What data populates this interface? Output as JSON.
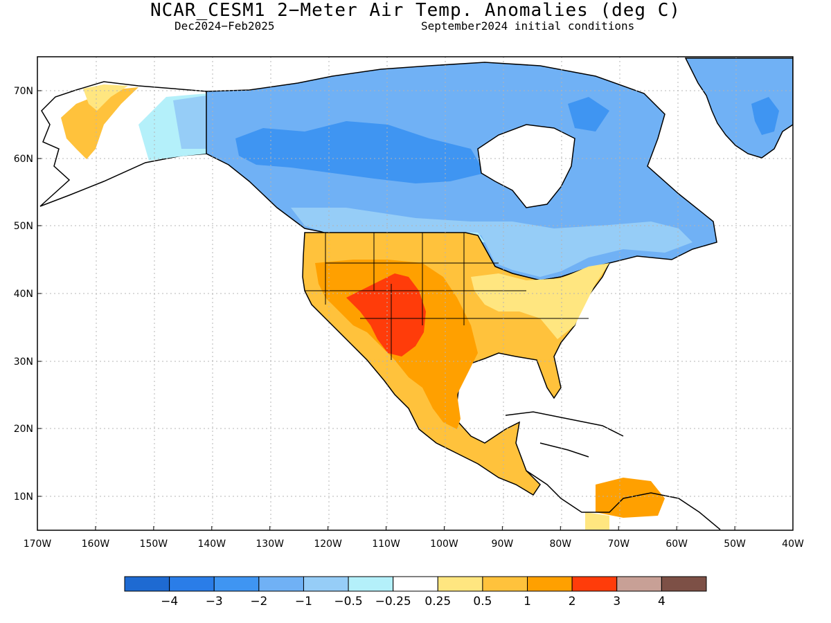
{
  "title": "NCAR_CESM1 2−Meter Air Temp. Anomalies (deg C)",
  "subtitle_left": "Dec2024−Feb2025",
  "subtitle_right": "September2024 initial conditions",
  "lat_labels": [
    "70N",
    "60N",
    "50N",
    "40N",
    "30N",
    "20N",
    "10N"
  ],
  "lon_labels": [
    "170W",
    "160W",
    "150W",
    "140W",
    "130W",
    "120W",
    "110W",
    "100W",
    "90W",
    "80W",
    "70W",
    "60W",
    "50W",
    "40W"
  ],
  "colorbar": {
    "boundary_labels": [
      "−4",
      "−3",
      "−2",
      "−1",
      "−0.5",
      "−0.25",
      "0.25",
      "0.5",
      "1",
      "2",
      "3",
      "4"
    ],
    "colors": [
      "#1e6ad2",
      "#2a7de8",
      "#3f95f2",
      "#70b1f5",
      "#96cdf7",
      "#b4f0fa",
      "#ffffff",
      "#ffe680",
      "#ffc23c",
      "#ffa000",
      "#ff3c0a",
      "#c8a096",
      "#7d5046"
    ]
  }
}
